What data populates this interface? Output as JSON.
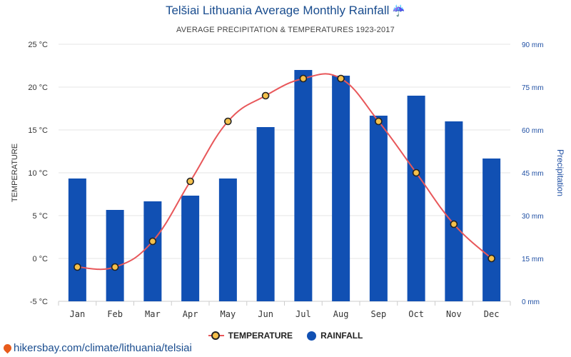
{
  "header": {
    "title": "Telšiai Lithuania Average Monthly Rainfall",
    "title_icon": "umbrella-rain-icon",
    "subtitle": "AVERAGE PRECIPITATION & TEMPERATURES 1923-2017"
  },
  "legend": {
    "temperature": "TEMPERATURE",
    "rainfall": "RAINFALL"
  },
  "footer": {
    "source": "hikersbay.com/climate/lithuania/telsiai"
  },
  "chart_data": {
    "type": "bar",
    "categories": [
      "Jan",
      "Feb",
      "Mar",
      "Apr",
      "May",
      "Jun",
      "Jul",
      "Aug",
      "Sep",
      "Oct",
      "Nov",
      "Dec"
    ],
    "series": [
      {
        "name": "RAINFALL",
        "type": "bar",
        "axis": "right",
        "color": "#1150b3",
        "values": [
          43,
          32,
          35,
          37,
          43,
          61,
          81,
          79,
          65,
          72,
          63,
          50
        ]
      },
      {
        "name": "TEMPERATURE",
        "type": "line",
        "axis": "left",
        "color": "#e8575a",
        "values": [
          -1,
          -1,
          2,
          9,
          16,
          19,
          21,
          21,
          16,
          10,
          4,
          0
        ]
      }
    ],
    "left_axis": {
      "label": "TEMPERATURE",
      "ylim": [
        -5,
        25
      ],
      "ticks": [
        25,
        20,
        15,
        10,
        5,
        0,
        -5
      ],
      "tick_labels": [
        "25 °C",
        "20 °C",
        "15 °C",
        "10 °C",
        "5 °C",
        "0 °C",
        "-5 °C"
      ]
    },
    "right_axis": {
      "label": "Precipitation",
      "ylim": [
        0,
        90
      ],
      "ticks": [
        90,
        75,
        60,
        45,
        30,
        15,
        0
      ],
      "tick_labels": [
        "90 mm",
        "75 mm",
        "60 mm",
        "45 mm",
        "30 mm",
        "15 mm",
        "0 mm"
      ]
    },
    "grid": true,
    "legend_position": "bottom"
  }
}
